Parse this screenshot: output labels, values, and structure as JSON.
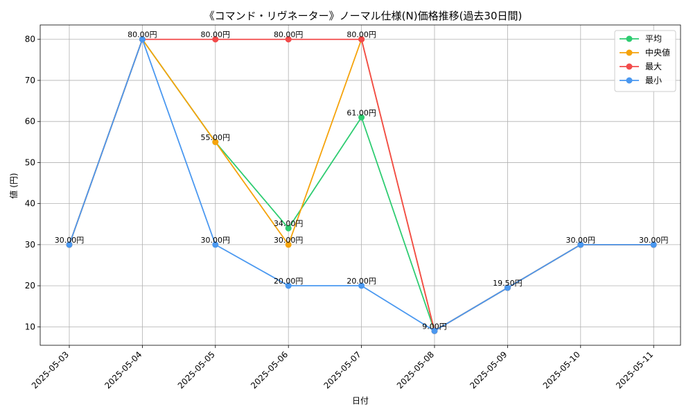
{
  "chart_data": {
    "type": "line",
    "title": "《コマンド・リヴネーター》ノーマル仕様(N)価格推移(過去30日間)",
    "xlabel": "日付",
    "ylabel": "値 (円)",
    "ylim": [
      5.5,
      83.5
    ],
    "yticks": [
      10,
      20,
      30,
      40,
      50,
      60,
      70,
      80
    ],
    "grid": true,
    "legend_position": "top-right",
    "categories": [
      "2025-05-03",
      "2025-05-04",
      "2025-05-05",
      "2025-05-06",
      "2025-05-07",
      "2025-05-08",
      "2025-05-09",
      "2025-05-10",
      "2025-05-11"
    ],
    "series": [
      {
        "name": "平均",
        "color": "#2ecc71",
        "values": [
          30,
          80,
          55,
          34,
          61,
          9,
          19.5,
          30,
          30
        ]
      },
      {
        "name": "中央値",
        "color": "#f5a30b",
        "values": [
          30,
          80,
          55,
          30,
          80,
          9,
          19.5,
          30,
          30
        ]
      },
      {
        "name": "最大",
        "color": "#f24b4b",
        "values": [
          30,
          80,
          80,
          80,
          80,
          9,
          19.5,
          30,
          30
        ]
      },
      {
        "name": "最小",
        "color": "#4a98f0",
        "values": [
          30,
          80,
          30,
          20,
          20,
          9,
          19.5,
          30,
          30
        ]
      }
    ],
    "data_labels": [
      {
        "text": "30.00円",
        "series": "平均",
        "index": 0
      },
      {
        "text": "80.00円",
        "series": "平均",
        "index": 1
      },
      {
        "text": "55.00円",
        "series": "平均",
        "index": 2
      },
      {
        "text": "34.00円",
        "series": "平均",
        "index": 3
      },
      {
        "text": "61.00円",
        "series": "平均",
        "index": 4
      },
      {
        "text": "9.00円",
        "series": "平均",
        "index": 5
      },
      {
        "text": "19.50円",
        "series": "平均",
        "index": 6
      },
      {
        "text": "30.00円",
        "series": "平均",
        "index": 7
      },
      {
        "text": "30.00円",
        "series": "平均",
        "index": 8
      },
      {
        "text": "80.00円",
        "series": "最大",
        "index": 2
      },
      {
        "text": "80.00円",
        "series": "最大",
        "index": 3
      },
      {
        "text": "80.00円",
        "series": "最大",
        "index": 4
      },
      {
        "text": "30.00円",
        "series": "最小",
        "index": 2
      },
      {
        "text": "30.00円",
        "series": "中央値",
        "index": 3
      },
      {
        "text": "20.00円",
        "series": "最小",
        "index": 3
      },
      {
        "text": "20.00円",
        "series": "最小",
        "index": 4
      }
    ]
  }
}
